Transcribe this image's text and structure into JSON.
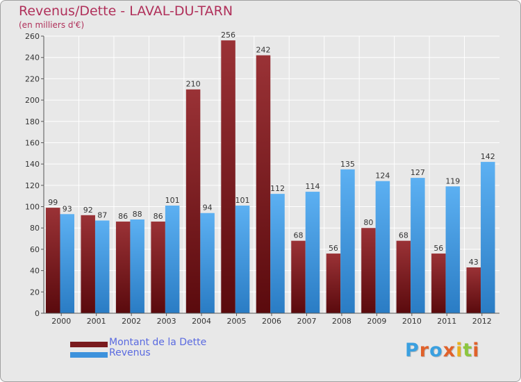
{
  "title": "Revenus/Dette - LAVAL-DU-TARN",
  "subtitle": "(en milliers d'€)",
  "logo": "Proxiti",
  "colors": {
    "dette": "#7a1b1e",
    "revenus": "#3d92dc",
    "title": "#b0305a",
    "legend_text": "#5a6ae0"
  },
  "legend": [
    {
      "label": "Montant de la Dette",
      "color": "#7a1b1e"
    },
    {
      "label": "Revenus",
      "color": "#3d92dc"
    }
  ],
  "chart_data": {
    "type": "bar",
    "categories": [
      "2000",
      "2001",
      "2002",
      "2003",
      "2004",
      "2005",
      "2006",
      "2007",
      "2008",
      "2009",
      "2010",
      "2011",
      "2012"
    ],
    "series": [
      {
        "name": "Montant de la Dette",
        "values": [
          99,
          92,
          86,
          86,
          210,
          256,
          242,
          68,
          56,
          80,
          68,
          56,
          43
        ]
      },
      {
        "name": "Revenus",
        "values": [
          93,
          87,
          88,
          101,
          94,
          101,
          112,
          114,
          135,
          124,
          127,
          119,
          142
        ]
      }
    ],
    "ylim": [
      0,
      260
    ],
    "yticks": [
      0,
      20,
      40,
      60,
      80,
      100,
      120,
      140,
      160,
      180,
      200,
      220,
      240,
      260
    ],
    "grid": true,
    "legend_position": "bottom-left"
  }
}
